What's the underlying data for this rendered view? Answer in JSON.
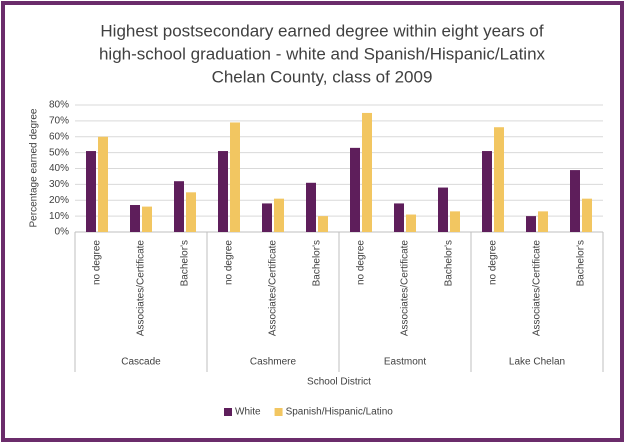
{
  "chart_data": {
    "type": "bar",
    "title": [
      "Highest postsecondary earned degree within eight years of",
      "high-school graduation - white and Spanish/Hispanic/Latinx",
      "Chelan County, class of 2009"
    ],
    "groups": [
      "Cascade",
      "Cashmere",
      "Eastmont",
      "Lake Chelan"
    ],
    "categories": [
      "no degree",
      "Associates/Certificate",
      "Bachelor's",
      "no degree",
      "Associates/Certificate",
      "Bachelor's",
      "no degree",
      "Associates/Certificate",
      "Bachelor's",
      "no degree",
      "Associates/Certificate",
      "Bachelor's"
    ],
    "series": [
      {
        "name": "White",
        "color": "#5e1e5b",
        "values": [
          51,
          17,
          32,
          51,
          18,
          31,
          53,
          18,
          28,
          51,
          10,
          39
        ]
      },
      {
        "name": "Spanish/Hispanic/Latino",
        "color": "#f2c661",
        "values": [
          60,
          16,
          25,
          69,
          21,
          10,
          75,
          11,
          13,
          66,
          13,
          21
        ]
      }
    ],
    "ylim": [
      0,
      80
    ],
    "yticks": [
      {
        "value": 0,
        "label": "0%"
      },
      {
        "value": 10,
        "label": "10%"
      },
      {
        "value": 20,
        "label": "20%"
      },
      {
        "value": 30,
        "label": "30%"
      },
      {
        "value": 40,
        "label": "40%"
      },
      {
        "value": 50,
        "label": "50%"
      },
      {
        "value": 60,
        "label": "60%"
      },
      {
        "value": 70,
        "label": "70%"
      },
      {
        "value": 80,
        "label": "80%"
      }
    ],
    "ylabel": "Percentage earned degree",
    "xlabel": "School District",
    "grid": true,
    "legend": "bottom"
  }
}
